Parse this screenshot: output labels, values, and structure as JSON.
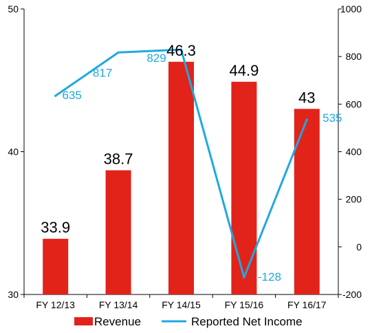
{
  "chart_data": {
    "type": "bar",
    "title": "",
    "xlabel": "",
    "ylabel": "",
    "y2label": "",
    "categories": [
      "FY 12/13",
      "FY 13/14",
      "FY 14/15",
      "FY 15/16",
      "FY 16/17"
    ],
    "ylim": [
      30,
      50
    ],
    "yticks": [
      30,
      40,
      50
    ],
    "y2lim": [
      -200,
      1000
    ],
    "y2ticks": [
      -200,
      0,
      200,
      400,
      600,
      800,
      1000
    ],
    "grid": false,
    "legend_position": "bottom",
    "series": [
      {
        "name": "Revenue",
        "type": "bar",
        "axis": "left",
        "color": "#e2231a",
        "values": [
          33.9,
          38.7,
          46.3,
          44.9,
          43
        ],
        "labels": [
          "33.9",
          "38.7",
          "46.3",
          "44.9",
          "43"
        ]
      },
      {
        "name": "Reported Net Income",
        "type": "line",
        "axis": "right",
        "color": "#1fa8e0",
        "values": [
          635,
          817,
          829,
          -128,
          535
        ],
        "labels": [
          "635",
          "817",
          "829",
          "-128",
          "535"
        ]
      }
    ]
  }
}
